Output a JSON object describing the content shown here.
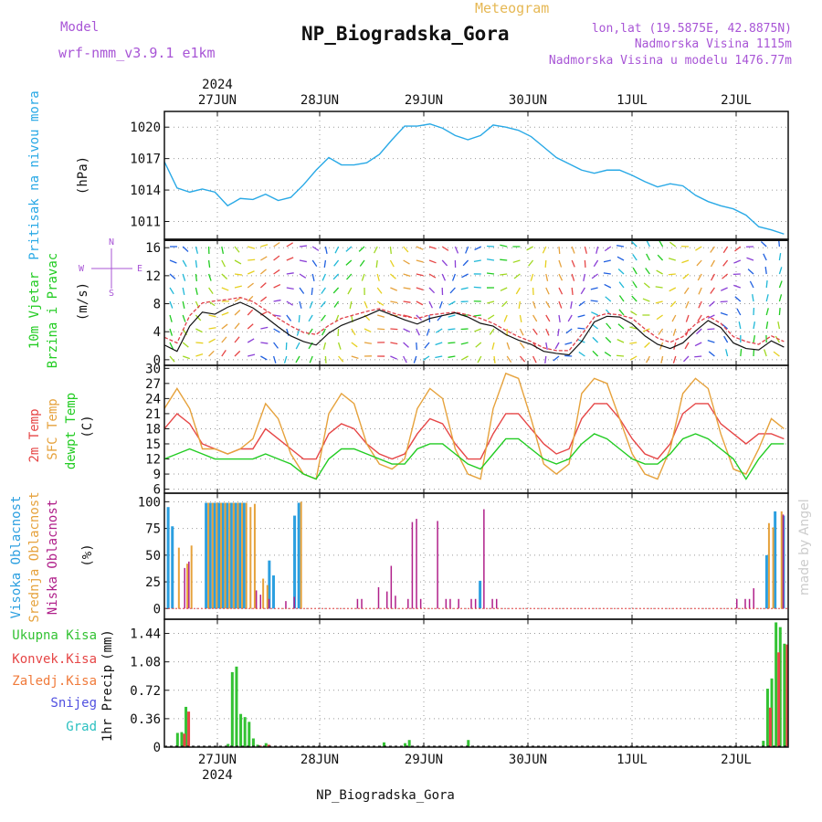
{
  "header": {
    "model_label": "Model",
    "model_name": "wrf-nmm_v3.9.1 e1km",
    "app_title": "Meteogram",
    "station": "NP_Biogradska_Gora",
    "coords": "lon,lat (19.5875E, 42.8875N)",
    "elevation": "Nadmorska Visina 1115m",
    "model_elevation": "Nadmorska Visina u modelu 1476.77m",
    "year": "2024",
    "watermark": "made by Angel",
    "footer_station": "NP_Biogradska_Gora"
  },
  "colors": {
    "pressure": "#29a9e6",
    "wind_speed": "#111111",
    "wind_gust": "#e0404a",
    "temp_2m": "#e64646",
    "temp_sfc": "#e6a23c",
    "temp_dew": "#22cc22",
    "cloud_high": "#2b9fe0",
    "cloud_mid": "#e6a23c",
    "cloud_low": "#b0208a",
    "precip_total": "#33c233",
    "precip_conv": "#e64646",
    "frame_grid": "#888888"
  },
  "chart_data": [
    {
      "type": "line",
      "title": "",
      "ylabel": [
        "Pritisak na nivou mora",
        "(hPa)"
      ],
      "xlabel": "",
      "x_ticks": [
        "27JUN",
        "28JUN",
        "29JUN",
        "30JUN",
        "1JUL",
        "2JUL"
      ],
      "ylim": [
        1009.3,
        1021.5
      ],
      "y_ticks": [
        1011,
        1014,
        1017,
        1020
      ],
      "grid": true,
      "series": [
        {
          "name": "",
          "x": [
            0,
            3,
            6,
            9,
            12,
            15,
            18,
            21,
            24,
            27,
            30,
            33,
            36,
            39,
            42,
            45,
            48,
            51,
            54,
            57,
            60,
            63,
            66,
            69,
            72,
            75,
            78,
            81,
            84,
            87,
            90,
            93,
            96,
            99,
            102,
            105,
            108,
            111,
            114,
            117,
            120,
            123,
            126,
            129,
            132,
            135,
            138,
            141,
            144,
            147
          ],
          "values": [
            1016.7,
            1014.2,
            1013.8,
            1014.1,
            1013.8,
            1012.5,
            1013.2,
            1013.1,
            1013.6,
            1013.0,
            1013.3,
            1014.5,
            1015.9,
            1017.1,
            1016.4,
            1016.4,
            1016.6,
            1017.4,
            1018.8,
            1020.1,
            1020.1,
            1020.3,
            1019.9,
            1019.2,
            1018.8,
            1019.2,
            1020.2,
            1020.0,
            1019.7,
            1019.1,
            1018.1,
            1017.1,
            1016.5,
            1015.9,
            1015.6,
            1015.9,
            1015.9,
            1015.4,
            1014.8,
            1014.3,
            1014.6,
            1014.4,
            1013.5,
            1012.9,
            1012.5,
            1012.2,
            1011.6,
            1010.5,
            1010.2,
            1009.8
          ]
        }
      ]
    },
    {
      "type": "line",
      "title": "",
      "ylabel": [
        "10m Vjetar",
        "Brzina i Pravac",
        "(m/s)"
      ],
      "compass": [
        "N",
        "W",
        "E",
        "S"
      ],
      "ylim": [
        -0.8,
        17.2
      ],
      "y_ticks": [
        0,
        4,
        8,
        12,
        16
      ],
      "grid": true,
      "series": [
        {
          "name": "",
          "x": [
            0,
            3,
            6,
            9,
            12,
            15,
            18,
            21,
            24,
            27,
            30,
            33,
            36,
            39,
            42,
            45,
            48,
            51,
            54,
            57,
            60,
            63,
            66,
            69,
            72,
            75,
            78,
            81,
            84,
            87,
            90,
            93,
            96,
            99,
            102,
            105,
            108,
            111,
            114,
            117,
            120,
            123,
            126,
            129,
            132,
            135,
            138,
            141,
            144,
            147
          ],
          "values": [
            2.1,
            1.2,
            4.8,
            6.8,
            6.5,
            7.5,
            8.2,
            7.4,
            6.1,
            4.7,
            3.4,
            2.6,
            2.1,
            3.8,
            4.9,
            5.6,
            6.3,
            7.1,
            6.4,
            5.7,
            5.1,
            5.9,
            6.3,
            6.7,
            6.1,
            5.2,
            4.8,
            3.6,
            2.8,
            2.2,
            1.2,
            0.9,
            0.7,
            2.6,
            5.4,
            6.2,
            6.1,
            5.1,
            3.4,
            2.2,
            1.6,
            2.4,
            4.1,
            5.6,
            4.6,
            2.4,
            1.6,
            1.4,
            2.7,
            1.8
          ]
        },
        {
          "name": "",
          "x": [
            0,
            3,
            6,
            9,
            12,
            15,
            18,
            21,
            24,
            27,
            30,
            33,
            36,
            39,
            42,
            45,
            48,
            51,
            54,
            57,
            60,
            63,
            66,
            69,
            72,
            75,
            78,
            81,
            84,
            87,
            90,
            93,
            96,
            99,
            102,
            105,
            108,
            111,
            114,
            117,
            120,
            123,
            126,
            129,
            132,
            135,
            138,
            141,
            144,
            147
          ],
          "values": [
            3.2,
            2.4,
            6.3,
            8.1,
            8.4,
            8.6,
            8.9,
            8.3,
            7.1,
            5.9,
            4.8,
            3.9,
            3.6,
            4.9,
            5.9,
            6.4,
            6.9,
            7.3,
            6.7,
            6.2,
            5.9,
            6.4,
            6.6,
            6.8,
            6.4,
            5.9,
            5.2,
            4.2,
            3.3,
            2.6,
            1.7,
            1.3,
            1.3,
            3.6,
            6.1,
            6.6,
            6.4,
            5.9,
            4.4,
            3.1,
            2.5,
            3.3,
            5.1,
            6.2,
            5.2,
            3.3,
            2.6,
            2.2,
            3.4,
            2.6
          ]
        }
      ]
    },
    {
      "type": "line",
      "title": "",
      "ylabel": [
        "2m Temp",
        "SFC Temp",
        "dewpt Temp",
        "(C)"
      ],
      "ylim": [
        5.2,
        30.6
      ],
      "y_ticks": [
        6,
        9,
        12,
        15,
        18,
        21,
        24,
        27,
        30
      ],
      "grid": true,
      "series": [
        {
          "name": "2m Temp",
          "x": [
            0,
            3,
            6,
            9,
            12,
            15,
            18,
            21,
            24,
            27,
            30,
            33,
            36,
            39,
            42,
            45,
            48,
            51,
            54,
            57,
            60,
            63,
            66,
            69,
            72,
            75,
            78,
            81,
            84,
            87,
            90,
            93,
            96,
            99,
            102,
            105,
            108,
            111,
            114,
            117,
            120,
            123,
            126,
            129,
            132,
            135,
            138,
            141,
            144,
            147
          ],
          "values": [
            18,
            21,
            19,
            15,
            14,
            13,
            14,
            14,
            18,
            16,
            14,
            12,
            12,
            17,
            19,
            18,
            15,
            13,
            12,
            13,
            17,
            20,
            19,
            15,
            12,
            12,
            17,
            21,
            21,
            18,
            15,
            13,
            14,
            20,
            23,
            23,
            20,
            16,
            13,
            12,
            15,
            21,
            23,
            23,
            19,
            17,
            15,
            17,
            17,
            16
          ]
        },
        {
          "name": "SFC Temp",
          "x": [
            0,
            3,
            6,
            9,
            12,
            15,
            18,
            21,
            24,
            27,
            30,
            33,
            36,
            39,
            42,
            45,
            48,
            51,
            54,
            57,
            60,
            63,
            66,
            69,
            72,
            75,
            78,
            81,
            84,
            87,
            90,
            93,
            96,
            99,
            102,
            105,
            108,
            111,
            114,
            117,
            120,
            123,
            126,
            129,
            132,
            135,
            138,
            141,
            144,
            147
          ],
          "values": [
            22,
            26,
            22,
            14,
            14,
            13,
            14,
            16,
            23,
            20,
            13,
            9,
            8,
            21,
            25,
            23,
            15,
            11,
            10,
            12,
            22,
            26,
            24,
            14,
            9,
            8,
            22,
            29,
            28,
            20,
            11,
            9,
            11,
            25,
            28,
            27,
            20,
            13,
            9,
            8,
            14,
            25,
            28,
            26,
            17,
            10,
            9,
            14,
            20,
            18
          ]
        },
        {
          "name": "dewpt Temp",
          "x": [
            0,
            3,
            6,
            9,
            12,
            15,
            18,
            21,
            24,
            27,
            30,
            33,
            36,
            39,
            42,
            45,
            48,
            51,
            54,
            57,
            60,
            63,
            66,
            69,
            72,
            75,
            78,
            81,
            84,
            87,
            90,
            93,
            96,
            99,
            102,
            105,
            108,
            111,
            114,
            117,
            120,
            123,
            126,
            129,
            132,
            135,
            138,
            141,
            144,
            147
          ],
          "values": [
            12,
            13,
            14,
            13,
            12,
            12,
            12,
            12,
            13,
            12,
            11,
            9,
            8,
            12,
            14,
            14,
            13,
            12,
            11,
            11,
            14,
            15,
            15,
            13,
            11,
            10,
            13,
            16,
            16,
            14,
            12,
            11,
            12,
            15,
            17,
            16,
            14,
            12,
            11,
            11,
            13,
            16,
            17,
            16,
            14,
            12,
            8,
            12,
            15,
            15
          ]
        }
      ]
    },
    {
      "type": "bar",
      "title": "",
      "ylabel": [
        "Visoka Oblacnost",
        "Srednja Oblacnost",
        "Niska Oblacnost",
        "(%)"
      ],
      "ylim": [
        0,
        100
      ],
      "y_ticks": [
        0,
        25,
        50,
        75,
        100
      ],
      "grid": true,
      "series": [
        {
          "name": "Visoka Oblacnost",
          "x": [
            1,
            2,
            10,
            11,
            12,
            13,
            14,
            15,
            16,
            17,
            18,
            19,
            25,
            26,
            31,
            32,
            75,
            143,
            145,
            147
          ],
          "values": [
            95,
            77,
            99,
            99,
            99,
            99,
            99,
            99,
            99,
            99,
            99,
            99,
            45,
            31,
            87,
            99,
            26,
            50,
            91,
            87
          ]
        },
        {
          "name": "Srednja Oblacnost",
          "x": [
            3,
            5,
            6,
            10,
            11,
            12,
            13,
            14,
            15,
            16,
            17,
            18,
            19,
            20,
            21,
            23,
            24,
            32,
            143,
            144,
            146
          ],
          "values": [
            57,
            42,
            59,
            99,
            99,
            99,
            99,
            99,
            99,
            99,
            99,
            99,
            99,
            95,
            98,
            28,
            22,
            100,
            80,
            76,
            91
          ]
        },
        {
          "name": "Niska Oblacnost",
          "x": [
            4,
            5,
            21,
            22,
            24,
            28,
            30,
            45,
            46,
            50,
            52,
            53,
            54,
            57,
            58,
            59,
            60,
            64,
            66,
            67,
            69,
            72,
            73,
            75,
            77,
            78,
            135,
            137,
            138,
            139,
            146
          ],
          "values": [
            38,
            44,
            17,
            13,
            9,
            7,
            11,
            9,
            9,
            20,
            16,
            40,
            12,
            9,
            81,
            84,
            9,
            82,
            9,
            9,
            9,
            9,
            9,
            93,
            9,
            9,
            9,
            9,
            9,
            19,
            88
          ]
        }
      ]
    },
    {
      "type": "bar",
      "title": "",
      "ylabel": [
        "1hr Precip",
        "(mm)"
      ],
      "legend": [
        "Ukupna Kisa",
        "Konvek.Kisa",
        "Zaledj.Kisa",
        "Snijeg",
        "Grad"
      ],
      "ylim": [
        0,
        1.62
      ],
      "y_ticks": [
        0,
        0.36,
        0.72,
        1.08,
        1.44
      ],
      "grid": true,
      "series": [
        {
          "name": "Ukupna Kisa",
          "x": [
            3,
            4,
            5,
            15,
            16,
            17,
            18,
            19,
            20,
            21,
            22,
            24,
            52,
            57,
            58,
            72,
            142,
            143,
            144,
            145,
            146,
            147
          ],
          "values": [
            0.18,
            0.19,
            0.51,
            0.04,
            0.95,
            1.02,
            0.42,
            0.38,
            0.32,
            0.11,
            0.03,
            0.05,
            0.06,
            0.05,
            0.09,
            0.09,
            0.08,
            0.74,
            0.87,
            1.58,
            1.52,
            1.31
          ]
        },
        {
          "name": "Konvek.Kisa",
          "x": [
            4,
            5,
            22,
            24,
            143,
            145,
            147
          ],
          "values": [
            0.17,
            0.45,
            0.02,
            0.03,
            0.5,
            1.2,
            1.3
          ]
        }
      ]
    }
  ]
}
